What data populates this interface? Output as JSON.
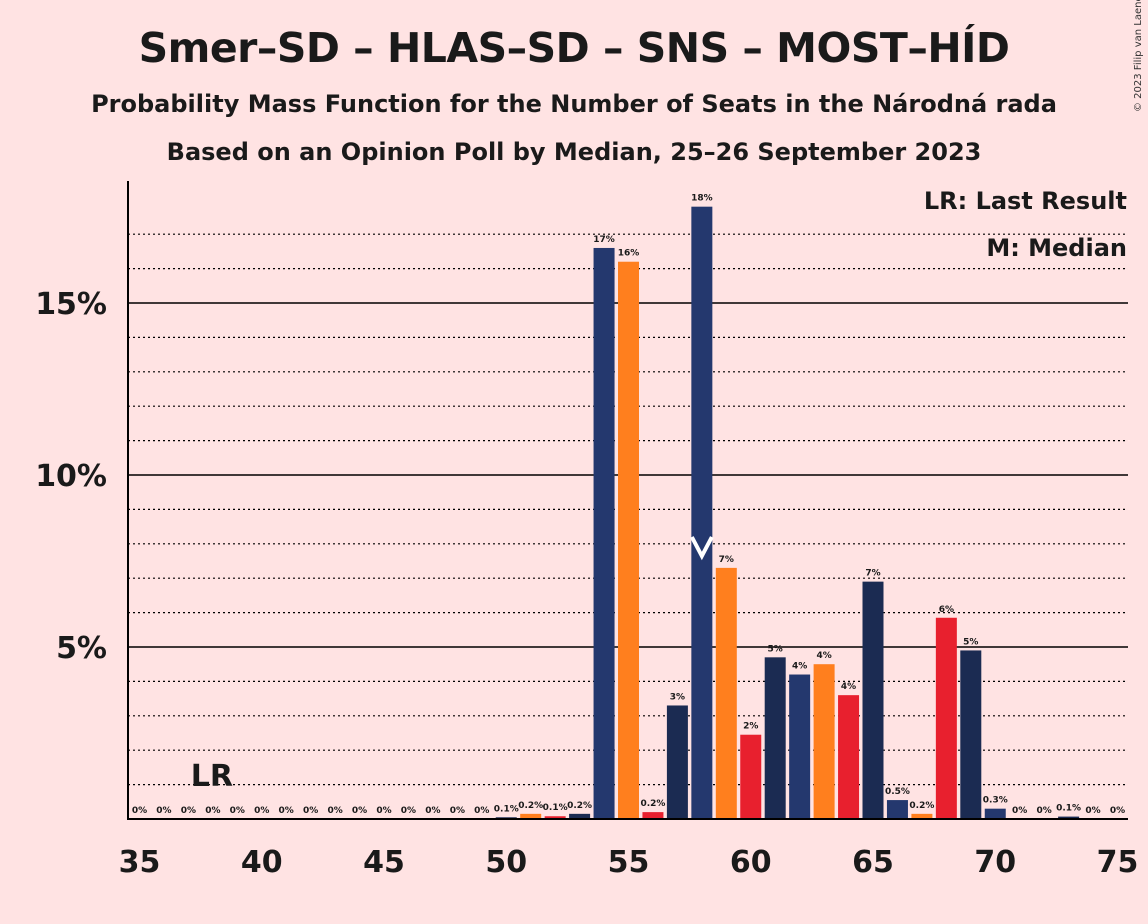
{
  "title": "Smer–SD – HLAS–SD – SNS – MOST–HÍD",
  "subtitle": "Probability Mass Function for the Number of Seats in the Národná rada",
  "subtitle2": "Based on an Opinion Poll by Median, 25–26 September 2023",
  "copyright": "© 2023 Filip van Laenen",
  "legend": {
    "lr": "LR: Last Result",
    "m": "M: Median"
  },
  "markers": {
    "lr_label": "LR",
    "lr_seat": 38,
    "median_label": "M",
    "median_seat": 58
  },
  "colors": {
    "background": "#FFE3E3",
    "navy": "#1B2B52",
    "blue": "#24386E",
    "orange": "#FF7F1E",
    "red": "#E8202E"
  },
  "chart_data": {
    "type": "bar",
    "xlabel": "",
    "ylabel": "",
    "xlim": [
      35,
      75
    ],
    "ylim": [
      0,
      18.5
    ],
    "x_ticks": [
      35,
      40,
      45,
      50,
      55,
      60,
      65,
      70,
      75
    ],
    "y_ticks": [
      {
        "value": 5,
        "label": "5%"
      },
      {
        "value": 10,
        "label": "10%"
      },
      {
        "value": 15,
        "label": "15%"
      }
    ],
    "grid": "dotted every 1%, solid at 5%, 10%, 15%",
    "bars": [
      {
        "seats": 35,
        "value": 0,
        "label": "0%",
        "color": "navy"
      },
      {
        "seats": 36,
        "value": 0,
        "label": "0%",
        "color": "navy"
      },
      {
        "seats": 37,
        "value": 0,
        "label": "0%",
        "color": "navy"
      },
      {
        "seats": 38,
        "value": 0,
        "label": "0%",
        "color": "navy"
      },
      {
        "seats": 39,
        "value": 0,
        "label": "0%",
        "color": "navy"
      },
      {
        "seats": 40,
        "value": 0,
        "label": "0%",
        "color": "navy"
      },
      {
        "seats": 41,
        "value": 0,
        "label": "0%",
        "color": "navy"
      },
      {
        "seats": 42,
        "value": 0,
        "label": "0%",
        "color": "navy"
      },
      {
        "seats": 43,
        "value": 0,
        "label": "0%",
        "color": "navy"
      },
      {
        "seats": 44,
        "value": 0,
        "label": "0%",
        "color": "navy"
      },
      {
        "seats": 45,
        "value": 0,
        "label": "0%",
        "color": "navy"
      },
      {
        "seats": 46,
        "value": 0,
        "label": "0%",
        "color": "navy"
      },
      {
        "seats": 47,
        "value": 0,
        "label": "0%",
        "color": "navy"
      },
      {
        "seats": 48,
        "value": 0,
        "label": "0%",
        "color": "navy"
      },
      {
        "seats": 49,
        "value": 0,
        "label": "0%",
        "color": "navy"
      },
      {
        "seats": 50,
        "value": 0.05,
        "label": "0.1%",
        "color": "navy"
      },
      {
        "seats": 51,
        "value": 0.15,
        "label": "0.2%",
        "color": "orange"
      },
      {
        "seats": 52,
        "value": 0.08,
        "label": "0.1%",
        "color": "red"
      },
      {
        "seats": 53,
        "value": 0.15,
        "label": "0.2%",
        "color": "navy"
      },
      {
        "seats": 54,
        "value": 16.6,
        "label": "17%",
        "color": "blue"
      },
      {
        "seats": 55,
        "value": 16.2,
        "label": "16%",
        "color": "orange"
      },
      {
        "seats": 56,
        "value": 0.2,
        "label": "0.2%",
        "color": "red"
      },
      {
        "seats": 57,
        "value": 3.3,
        "label": "3%",
        "color": "navy"
      },
      {
        "seats": 58,
        "value": 17.8,
        "label": "18%",
        "color": "blue"
      },
      {
        "seats": 59,
        "value": 7.3,
        "label": "7%",
        "color": "orange"
      },
      {
        "seats": 60,
        "value": 2.45,
        "label": "2%",
        "color": "red"
      },
      {
        "seats": 61,
        "value": 4.7,
        "label": "5%",
        "color": "navy"
      },
      {
        "seats": 62,
        "value": 4.2,
        "label": "4%",
        "color": "blue"
      },
      {
        "seats": 63,
        "value": 4.5,
        "label": "4%",
        "color": "orange"
      },
      {
        "seats": 64,
        "value": 3.6,
        "label": "4%",
        "color": "red"
      },
      {
        "seats": 65,
        "value": 6.9,
        "label": "7%",
        "color": "navy"
      },
      {
        "seats": 66,
        "value": 0.55,
        "label": "0.5%",
        "color": "blue"
      },
      {
        "seats": 67,
        "value": 0.15,
        "label": "0.2%",
        "color": "orange"
      },
      {
        "seats": 68,
        "value": 5.85,
        "label": "6%",
        "color": "red"
      },
      {
        "seats": 69,
        "value": 4.9,
        "label": "5%",
        "color": "navy"
      },
      {
        "seats": 70,
        "value": 0.3,
        "label": "0.3%",
        "color": "blue"
      },
      {
        "seats": 71,
        "value": 0,
        "label": "0%",
        "color": "orange"
      },
      {
        "seats": 72,
        "value": 0,
        "label": "0%",
        "color": "red"
      },
      {
        "seats": 73,
        "value": 0.07,
        "label": "0.1%",
        "color": "navy"
      },
      {
        "seats": 74,
        "value": 0,
        "label": "0%",
        "color": "blue"
      },
      {
        "seats": 75,
        "value": 0,
        "label": "0%",
        "color": "orange"
      }
    ]
  }
}
